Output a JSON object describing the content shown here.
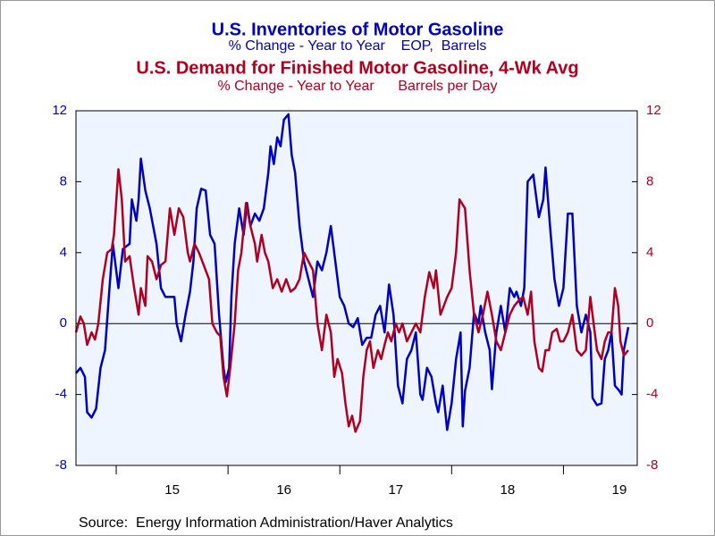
{
  "chart_data": {
    "type": "line",
    "source": "Source:  Energy Information Administration/Haver Analytics",
    "xlim": [
      2014.64,
      2019.66
    ],
    "xticks": [
      {
        "value": 2015.5,
        "label": "15"
      },
      {
        "value": 2016.5,
        "label": "16"
      },
      {
        "value": 2017.5,
        "label": "17"
      },
      {
        "value": 2018.5,
        "label": "18"
      },
      {
        "value": 2019.5,
        "label": "19"
      }
    ],
    "ylim": [
      -8,
      12
    ],
    "yticks": [
      -8,
      -4,
      0,
      4,
      8,
      12
    ],
    "y2lim": [
      -8,
      12
    ],
    "y2ticks": [
      -8,
      -4,
      0,
      4,
      8,
      12
    ],
    "series": [
      {
        "name": "U.S. Inventories of Motor Gasoline",
        "subtitle": "% Change - Year to Year    EOP,  Barrels",
        "color": "#0000c0",
        "axis": "y",
        "x": [
          2014.64,
          2014.68,
          2014.72,
          2014.74,
          2014.78,
          2014.82,
          2014.86,
          2014.9,
          2014.94,
          2014.97,
          2015.02,
          2015.06,
          2015.12,
          2015.14,
          2015.18,
          2015.2,
          2015.22,
          2015.26,
          2015.3,
          2015.36,
          2015.4,
          2015.44,
          2015.48,
          2015.52,
          2015.54,
          2015.58,
          2015.62,
          2015.66,
          2015.69,
          2015.72,
          2015.76,
          2015.8,
          2015.84,
          2015.88,
          2015.92,
          2015.96,
          2015.98,
          2016.01,
          2016.03,
          2016.06,
          2016.1,
          2016.14,
          2016.17,
          2016.2,
          2016.24,
          2016.28,
          2016.32,
          2016.36,
          2016.38,
          2016.41,
          2016.44,
          2016.47,
          2016.5,
          2016.54,
          2016.57,
          2016.6,
          2016.64,
          2016.68,
          2016.72,
          2016.76,
          2016.8,
          2016.84,
          2016.88,
          2016.92,
          2016.96,
          2017,
          2017.04,
          2017.08,
          2017.12,
          2017.16,
          2017.2,
          2017.24,
          2017.28,
          2017.32,
          2017.36,
          2017.4,
          2017.44,
          2017.48,
          2017.52,
          2017.56,
          2017.6,
          2017.64,
          2017.68,
          2017.72,
          2017.74,
          2017.78,
          2017.82,
          2017.86,
          2017.88,
          2017.92,
          2017.96,
          2018,
          2018.04,
          2018.08,
          2018.1,
          2018.12,
          2018.16,
          2018.2,
          2018.24,
          2018.26,
          2018.3,
          2018.34,
          2018.36,
          2018.4,
          2018.44,
          2018.48,
          2018.52,
          2018.56,
          2018.58,
          2018.62,
          2018.65,
          2018.68,
          2018.73,
          2018.78,
          2018.82,
          2018.84,
          2018.88,
          2018.92,
          2018.96,
          2019,
          2019.04,
          2019.08,
          2019.12,
          2019.16,
          2019.2,
          2019.24,
          2019.26,
          2019.3,
          2019.34,
          2019.37,
          2019.4,
          2019.43,
          2019.46,
          2019.5,
          2019.52,
          2019.54,
          2019.58
        ],
        "values": [
          -2.8,
          -2.5,
          -3,
          -5,
          -5.3,
          -4.8,
          -2.5,
          -1.5,
          2,
          4.5,
          2,
          4.2,
          4.5,
          7,
          5.8,
          7,
          9.3,
          7.5,
          6.5,
          4.5,
          2,
          1.5,
          1.5,
          1.5,
          0,
          -1,
          0.5,
          1.8,
          3.5,
          6.5,
          7.6,
          7.5,
          5,
          4.5,
          0.5,
          -2.5,
          -3.3,
          -2.5,
          1.5,
          4.5,
          6.5,
          5,
          6.8,
          5.5,
          6.2,
          5.8,
          6.5,
          8.5,
          10,
          9,
          10.5,
          10,
          11.5,
          11.8,
          9.5,
          8.5,
          5.5,
          3.5,
          2.5,
          1.5,
          3.5,
          3,
          4,
          5.5,
          3.5,
          1.5,
          1,
          0,
          -0.2,
          0.3,
          -1.2,
          -0.8,
          -0.8,
          0.5,
          1,
          -0.5,
          2.2,
          0.5,
          -3.5,
          -4.5,
          -2,
          -1.5,
          -0.5,
          -4,
          -4.3,
          -2.5,
          -3,
          -4.5,
          -5,
          -3.5,
          -6,
          -4.5,
          -2,
          -0.5,
          -5.8,
          -3.8,
          -2.5,
          0.6,
          0,
          1,
          -0.5,
          -1.5,
          -3.7,
          -0.5,
          1,
          -0.5,
          2,
          1.5,
          1.8,
          1,
          2,
          8,
          8.4,
          6,
          7,
          8.8,
          5.5,
          2.5,
          1,
          2,
          6.2,
          6.2,
          1,
          -0.5,
          0.5,
          -0.5,
          -4.2,
          -4.6,
          -4.5,
          -2,
          -1.5,
          -0.5,
          -3.5,
          -3.8,
          -4,
          -1.5,
          -0.2
        ]
      },
      {
        "name": "U.S. Demand for Finished Motor Gasoline, 4-Wk Avg",
        "subtitle": "% Change - Year to Year      Barrels per Day",
        "color": "#b00020",
        "axis": "y2",
        "x": [
          2014.64,
          2014.68,
          2014.71,
          2014.74,
          2014.78,
          2014.81,
          2014.84,
          2014.88,
          2014.92,
          2014.96,
          2014.98,
          2015.02,
          2015.05,
          2015.08,
          2015.12,
          2015.16,
          2015.2,
          2015.22,
          2015.26,
          2015.28,
          2015.32,
          2015.36,
          2015.4,
          2015.44,
          2015.48,
          2015.52,
          2015.56,
          2015.6,
          2015.64,
          2015.66,
          2015.7,
          2015.74,
          2015.77,
          2015.8,
          2015.83,
          2015.86,
          2015.9,
          2015.93,
          2015.96,
          2015.99,
          2016.02,
          2016.06,
          2016.09,
          2016.12,
          2016.16,
          2016.2,
          2016.24,
          2016.26,
          2016.3,
          2016.33,
          2016.36,
          2016.4,
          2016.44,
          2016.48,
          2016.52,
          2016.56,
          2016.6,
          2016.64,
          2016.68,
          2016.72,
          2016.76,
          2016.8,
          2016.84,
          2016.88,
          2016.92,
          2016.95,
          2016.98,
          2017.02,
          2017.05,
          2017.08,
          2017.11,
          2017.14,
          2017.18,
          2017.21,
          2017.24,
          2017.27,
          2017.3,
          2017.34,
          2017.37,
          2017.4,
          2017.43,
          2017.46,
          2017.5,
          2017.53,
          2017.56,
          2017.6,
          2017.64,
          2017.68,
          2017.72,
          2017.76,
          2017.8,
          2017.84,
          2017.86,
          2017.9,
          2017.93,
          2017.96,
          2018,
          2018.04,
          2018.07,
          2018.12,
          2018.16,
          2018.2,
          2018.24,
          2018.28,
          2018.32,
          2018.36,
          2018.4,
          2018.44,
          2018.48,
          2018.52,
          2018.56,
          2018.6,
          2018.64,
          2018.68,
          2018.71,
          2018.74,
          2018.78,
          2018.81,
          2018.84,
          2018.87,
          2018.9,
          2018.94,
          2018.97,
          2019,
          2019.04,
          2019.08,
          2019.12,
          2019.16,
          2019.2,
          2019.24,
          2019.27,
          2019.3,
          2019.34,
          2019.37,
          2019.4,
          2019.43,
          2019.46,
          2019.49,
          2019.51,
          2019.54,
          2019.58
        ],
        "values": [
          -0.5,
          0.4,
          0,
          -1.2,
          -0.5,
          -0.9,
          0,
          2.5,
          4,
          4.2,
          5,
          8.7,
          7,
          3.5,
          3.8,
          2,
          0.5,
          2,
          1,
          3.8,
          3.5,
          2.5,
          3.3,
          3.5,
          6.5,
          5,
          6.5,
          6,
          4,
          3.5,
          4.5,
          4,
          3.5,
          3,
          2.5,
          0,
          -0.5,
          -0.7,
          -3,
          -4.1,
          -2.5,
          0,
          3,
          4,
          6.8,
          5.5,
          4.5,
          3.5,
          5,
          4,
          3.5,
          2,
          2.5,
          1.8,
          2.5,
          1.8,
          2,
          2.5,
          4,
          3.5,
          3,
          0,
          -1.5,
          0.5,
          -0.5,
          -3,
          -2,
          -2.8,
          -4.5,
          -5.8,
          -5.2,
          -6.1,
          -5.5,
          -3,
          -1.5,
          -1,
          -2.5,
          -1.5,
          -2,
          -1.2,
          -0.5,
          -1,
          0,
          -0.5,
          0,
          -1,
          -0.5,
          0,
          -0.5,
          1.5,
          2.9,
          2,
          3,
          0.5,
          1,
          1.5,
          2,
          4,
          7,
          6.5,
          3,
          0.5,
          -0.5,
          0.5,
          1.8,
          0.5,
          -1,
          -1.5,
          -0.5,
          0.5,
          1,
          1.3,
          1.5,
          0.5,
          1.8,
          -1,
          -2.5,
          -2.7,
          -1.5,
          -1.5,
          -0.5,
          -0.3,
          -1,
          -1,
          -0.5,
          0.5,
          -1.5,
          -1.8,
          -1.5,
          1.5,
          0,
          -1.5,
          -2,
          -1,
          -0.5,
          -0.5,
          2,
          1,
          -1,
          -1.8,
          -1.5
        ]
      }
    ]
  }
}
